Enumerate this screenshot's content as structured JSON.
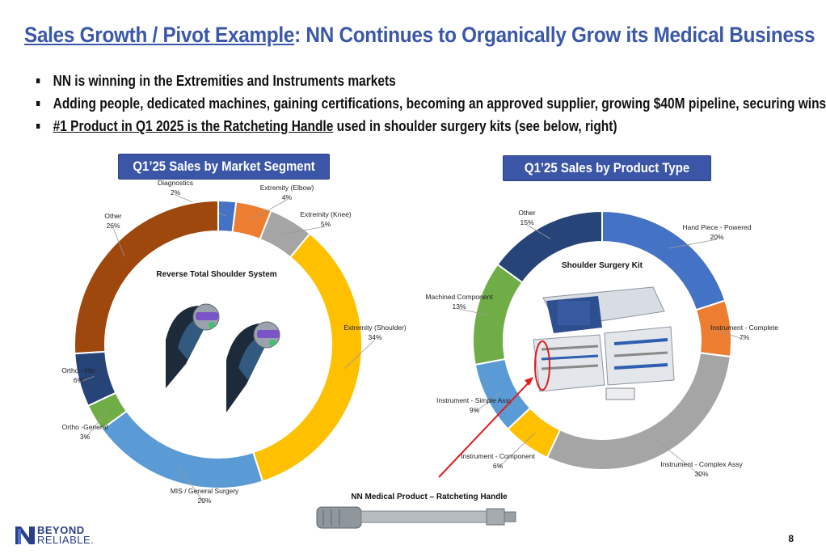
{
  "header": {
    "title_part1": "Sales Growth / Pivot Example",
    "title_part2": ": NN Continues to Organically Grow its Medical Business"
  },
  "bullets": [
    {
      "text": "NN is winning in the Extremities and Instruments markets"
    },
    {
      "text": "Adding people, dedicated machines, gaining certifications, becoming an approved supplier, growing $40M pipeline, securing wins"
    },
    {
      "underlined": "#1 Product in Q1 2025 is the Ratcheting Handle",
      "rest": " used in shoulder surgery kits (see below, right)"
    }
  ],
  "footer": {
    "logo_line1": "BEYOND",
    "logo_line2": "RELIABLE.",
    "page_number": "8"
  },
  "images": {
    "shoulder_system_label": "Reverse Total Shoulder System",
    "surgery_kit_label": "Shoulder Surgery Kit",
    "handle_label": "NN Medical Product – Ratcheting Handle"
  },
  "colors": {
    "title": "#3a57a8",
    "pill": "#3b56a6"
  },
  "chart_data": [
    {
      "type": "pie",
      "donut": true,
      "title": "Q1’25 Sales by Market Segment",
      "slices": [
        {
          "label": "Diagnostics",
          "value": 2,
          "pct": "2%",
          "color": "#4472c4"
        },
        {
          "label": "Extremity (Elbow)",
          "value": 4,
          "pct": "4%",
          "color": "#ed7d31"
        },
        {
          "label": "Extremity (Knee)",
          "value": 5,
          "pct": "5%",
          "color": "#a5a5a5"
        },
        {
          "label": "Extremity (Shoulder)",
          "value": 34,
          "pct": "34%",
          "color": "#ffc000"
        },
        {
          "label": "MIS / General Surgery",
          "value": 20,
          "pct": "20%",
          "color": "#5b9bd5"
        },
        {
          "label": "Ortho -General",
          "value": 3,
          "pct": "3%",
          "color": "#70ad47"
        },
        {
          "label": "Ortho - Hip",
          "value": 6,
          "pct": "6%",
          "color": "#264478"
        },
        {
          "label": "Other",
          "value": 26,
          "pct": "26%",
          "color": "#9e480e"
        }
      ]
    },
    {
      "type": "pie",
      "donut": true,
      "title": "Q1’25 Sales by Product Type",
      "slices": [
        {
          "label": "Hand Piece - Powered",
          "value": 20,
          "pct": "20%",
          "color": "#4472c4"
        },
        {
          "label": "Instrument - Complete",
          "value": 7,
          "pct": "7%",
          "color": "#ed7d31"
        },
        {
          "label": "Instrument - Complex Assy",
          "value": 30,
          "pct": "30%",
          "color": "#a5a5a5"
        },
        {
          "label": "Instrument - Component",
          "value": 6,
          "pct": "6%",
          "color": "#ffc000"
        },
        {
          "label": "Instrument - Simple Assy",
          "value": 9,
          "pct": "9%",
          "color": "#5b9bd5"
        },
        {
          "label": "Machined Component",
          "value": 13,
          "pct": "13%",
          "color": "#70ad47"
        },
        {
          "label": "Other",
          "value": 15,
          "pct": "15%",
          "color": "#264478"
        }
      ]
    }
  ]
}
